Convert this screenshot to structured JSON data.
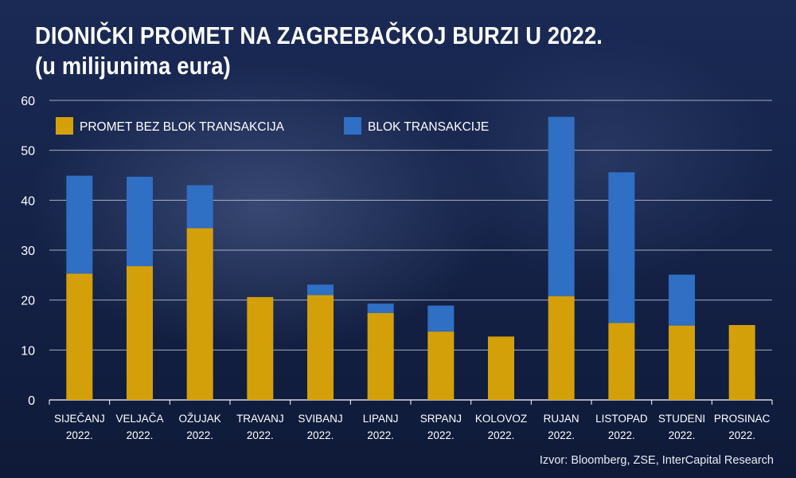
{
  "title_line1": "DIONIČKI PROMET NA ZAGREBAČKOJ BURZI U 2022.",
  "title_line2": "(u milijunima eura)",
  "source": "Izvor: Bloomberg, ZSE, InterCapital Research",
  "chart_data": {
    "type": "bar",
    "stacked": true,
    "categories": [
      [
        "SIJEČANJ",
        "2022."
      ],
      [
        "VELJAČA",
        "2022."
      ],
      [
        "OŽUJAK",
        "2022."
      ],
      [
        "TRAVANJ",
        "2022."
      ],
      [
        "SVIBANJ",
        "2022."
      ],
      [
        "LIPANJ",
        "2022."
      ],
      [
        "SRPANJ",
        "2022."
      ],
      [
        "KOLOVOZ",
        "2022."
      ],
      [
        "RUJAN",
        "2022."
      ],
      [
        "LISTOPAD",
        "2022."
      ],
      [
        "STUDENI",
        "2022."
      ],
      [
        "PROSINAC",
        "2022."
      ]
    ],
    "series": [
      {
        "name": "PROMET BEZ BLOK TRANSAKCIJA",
        "color": "#d4a00a",
        "values": [
          25.3,
          26.8,
          34.4,
          20.6,
          21.0,
          17.4,
          13.7,
          12.7,
          20.8,
          15.4,
          14.9,
          15.0
        ]
      },
      {
        "name": "BLOK TRANSAKCIJE",
        "color": "#2f6fc4",
        "values": [
          19.6,
          17.9,
          8.6,
          0.0,
          2.1,
          1.9,
          5.2,
          0.0,
          35.9,
          30.2,
          10.2,
          0.0
        ]
      }
    ],
    "ylim": [
      0,
      60
    ],
    "yticks": [
      0,
      10,
      20,
      30,
      40,
      50,
      60
    ],
    "grid": true,
    "legend_position": "top-left"
  }
}
